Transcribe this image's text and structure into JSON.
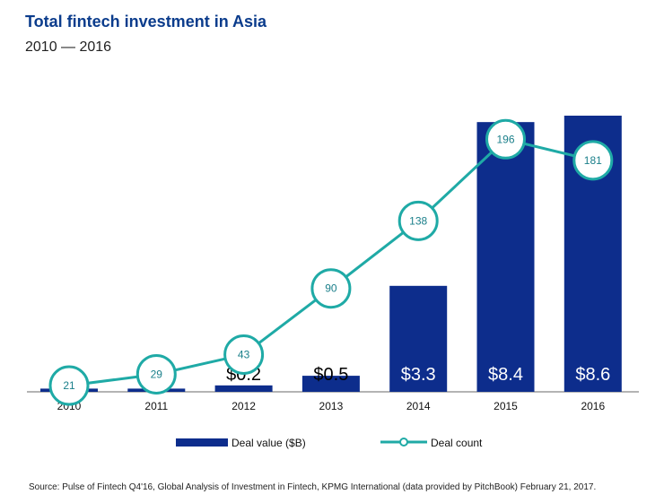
{
  "header": {
    "title": "Total fintech investment in Asia",
    "subtitle": "2010 — 2016"
  },
  "colors": {
    "bar": "#0d2d8c",
    "line": "#1faaa6",
    "title": "#0b3c8c"
  },
  "chart_data": {
    "type": "bar",
    "title": "Total fintech investment in Asia",
    "subtitle": "2010 — 2016",
    "categories": [
      "2010",
      "2011",
      "2012",
      "2013",
      "2014",
      "2015",
      "2016"
    ],
    "series": [
      {
        "name": "Deal value ($B)",
        "type": "bar",
        "values": [
          0.1,
          0.1,
          0.2,
          0.5,
          3.3,
          8.4,
          8.6
        ],
        "labels": [
          "",
          "",
          "$0.2",
          "$0.5",
          "$3.3",
          "$8.4",
          "$8.6"
        ]
      },
      {
        "name": "Deal count",
        "type": "line",
        "values": [
          21,
          29,
          43,
          90,
          138,
          196,
          181
        ]
      }
    ],
    "bar_ylim": [
      0,
      8.6
    ],
    "line_ylim": [
      0,
      220
    ],
    "legend_position": "bottom"
  },
  "source": "Source: Pulse of Fintech Q4'16, Global Analysis of Investment in Fintech, KPMG International (data provided by PitchBook) February 21, 2017."
}
